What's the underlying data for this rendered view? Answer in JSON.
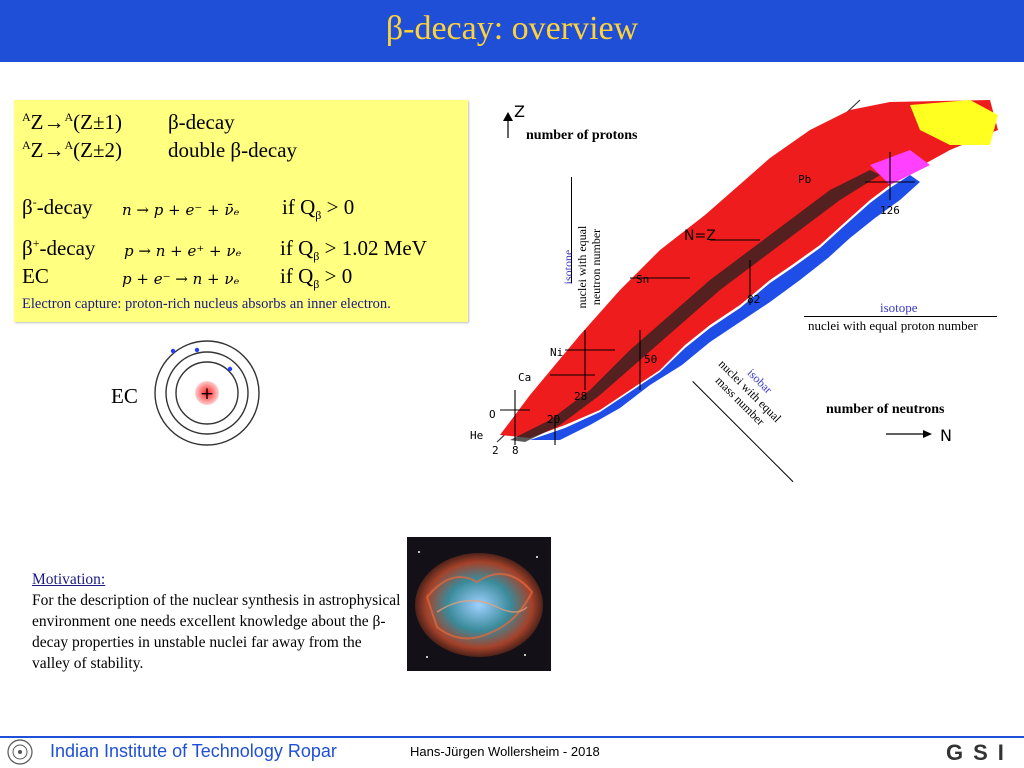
{
  "header": {
    "title": "β-decay: overview",
    "color": "#1f4fd6",
    "title_color": "#ffd23a"
  },
  "formula_box": {
    "line1_sup": "A",
    "line1_text": "Z→",
    "line1_sup2": "A",
    "line1_tail": "(Z±1)",
    "line1_label": "β-decay",
    "line2_sup": "A",
    "line2_text": "Z→",
    "line2_sup2": "A",
    "line2_tail": "(Z±2)",
    "line2_label": "double β-decay",
    "bminus_label": "β",
    "bminus_sup": "-",
    "bminus_tail": "-decay",
    "bminus_eq": "n → p + e⁻ + ν̄ₑ",
    "bminus_cond": "if Q",
    "bminus_cond_sub": "β",
    "bminus_cond_tail": " > 0",
    "bplus_label": "β",
    "bplus_sup": "+",
    "bplus_tail": "-decay",
    "bplus_eq": "p → n + e⁺ + νₑ",
    "bplus_cond": "if Q",
    "bplus_cond_sub": "β",
    "bplus_cond_tail": " > 1.02 MeV",
    "ec_label": "EC",
    "ec_eq": "p + e⁻ → n + νₑ",
    "ec_cond": "if Q",
    "ec_cond_sub": "β",
    "ec_cond_tail": " > 0",
    "note": "Electron capture: proton-rich nucleus absorbs an inner electron."
  },
  "atom": {
    "label": "EC",
    "nucleus_sign": "+"
  },
  "chart": {
    "z_axis": "Z",
    "z_desc": "number of protons",
    "n_axis": "N",
    "n_desc": "number of neutrons",
    "isotone": "isotone",
    "isotone_desc1": "nuclei with equal",
    "isotone_desc2": "neutron number",
    "isotope": "isotope",
    "isotope_desc": "nuclei with equal proton number",
    "isobar": "isobar",
    "isobar_desc1": "nuclei with equal",
    "isobar_desc2": "mass number",
    "nz": "N=Z",
    "elements": [
      "Pb",
      "Sn",
      "Ni",
      "Ca",
      "O",
      "He"
    ],
    "magic": [
      "2",
      "8",
      "20",
      "28",
      "50",
      "82",
      "126"
    ]
  },
  "motivation": {
    "heading": "Motivation:",
    "body": "For the description of the nuclear synthesis in astrophysical environment one needs excellent knowledge about the β-decay properties in unstable nuclei far away from the valley of stability."
  },
  "footer": {
    "institute": "Indian Institute of Technology Ropar",
    "author": "Hans-Jürgen Wollersheim - 2018",
    "logo_text": "GSI"
  }
}
